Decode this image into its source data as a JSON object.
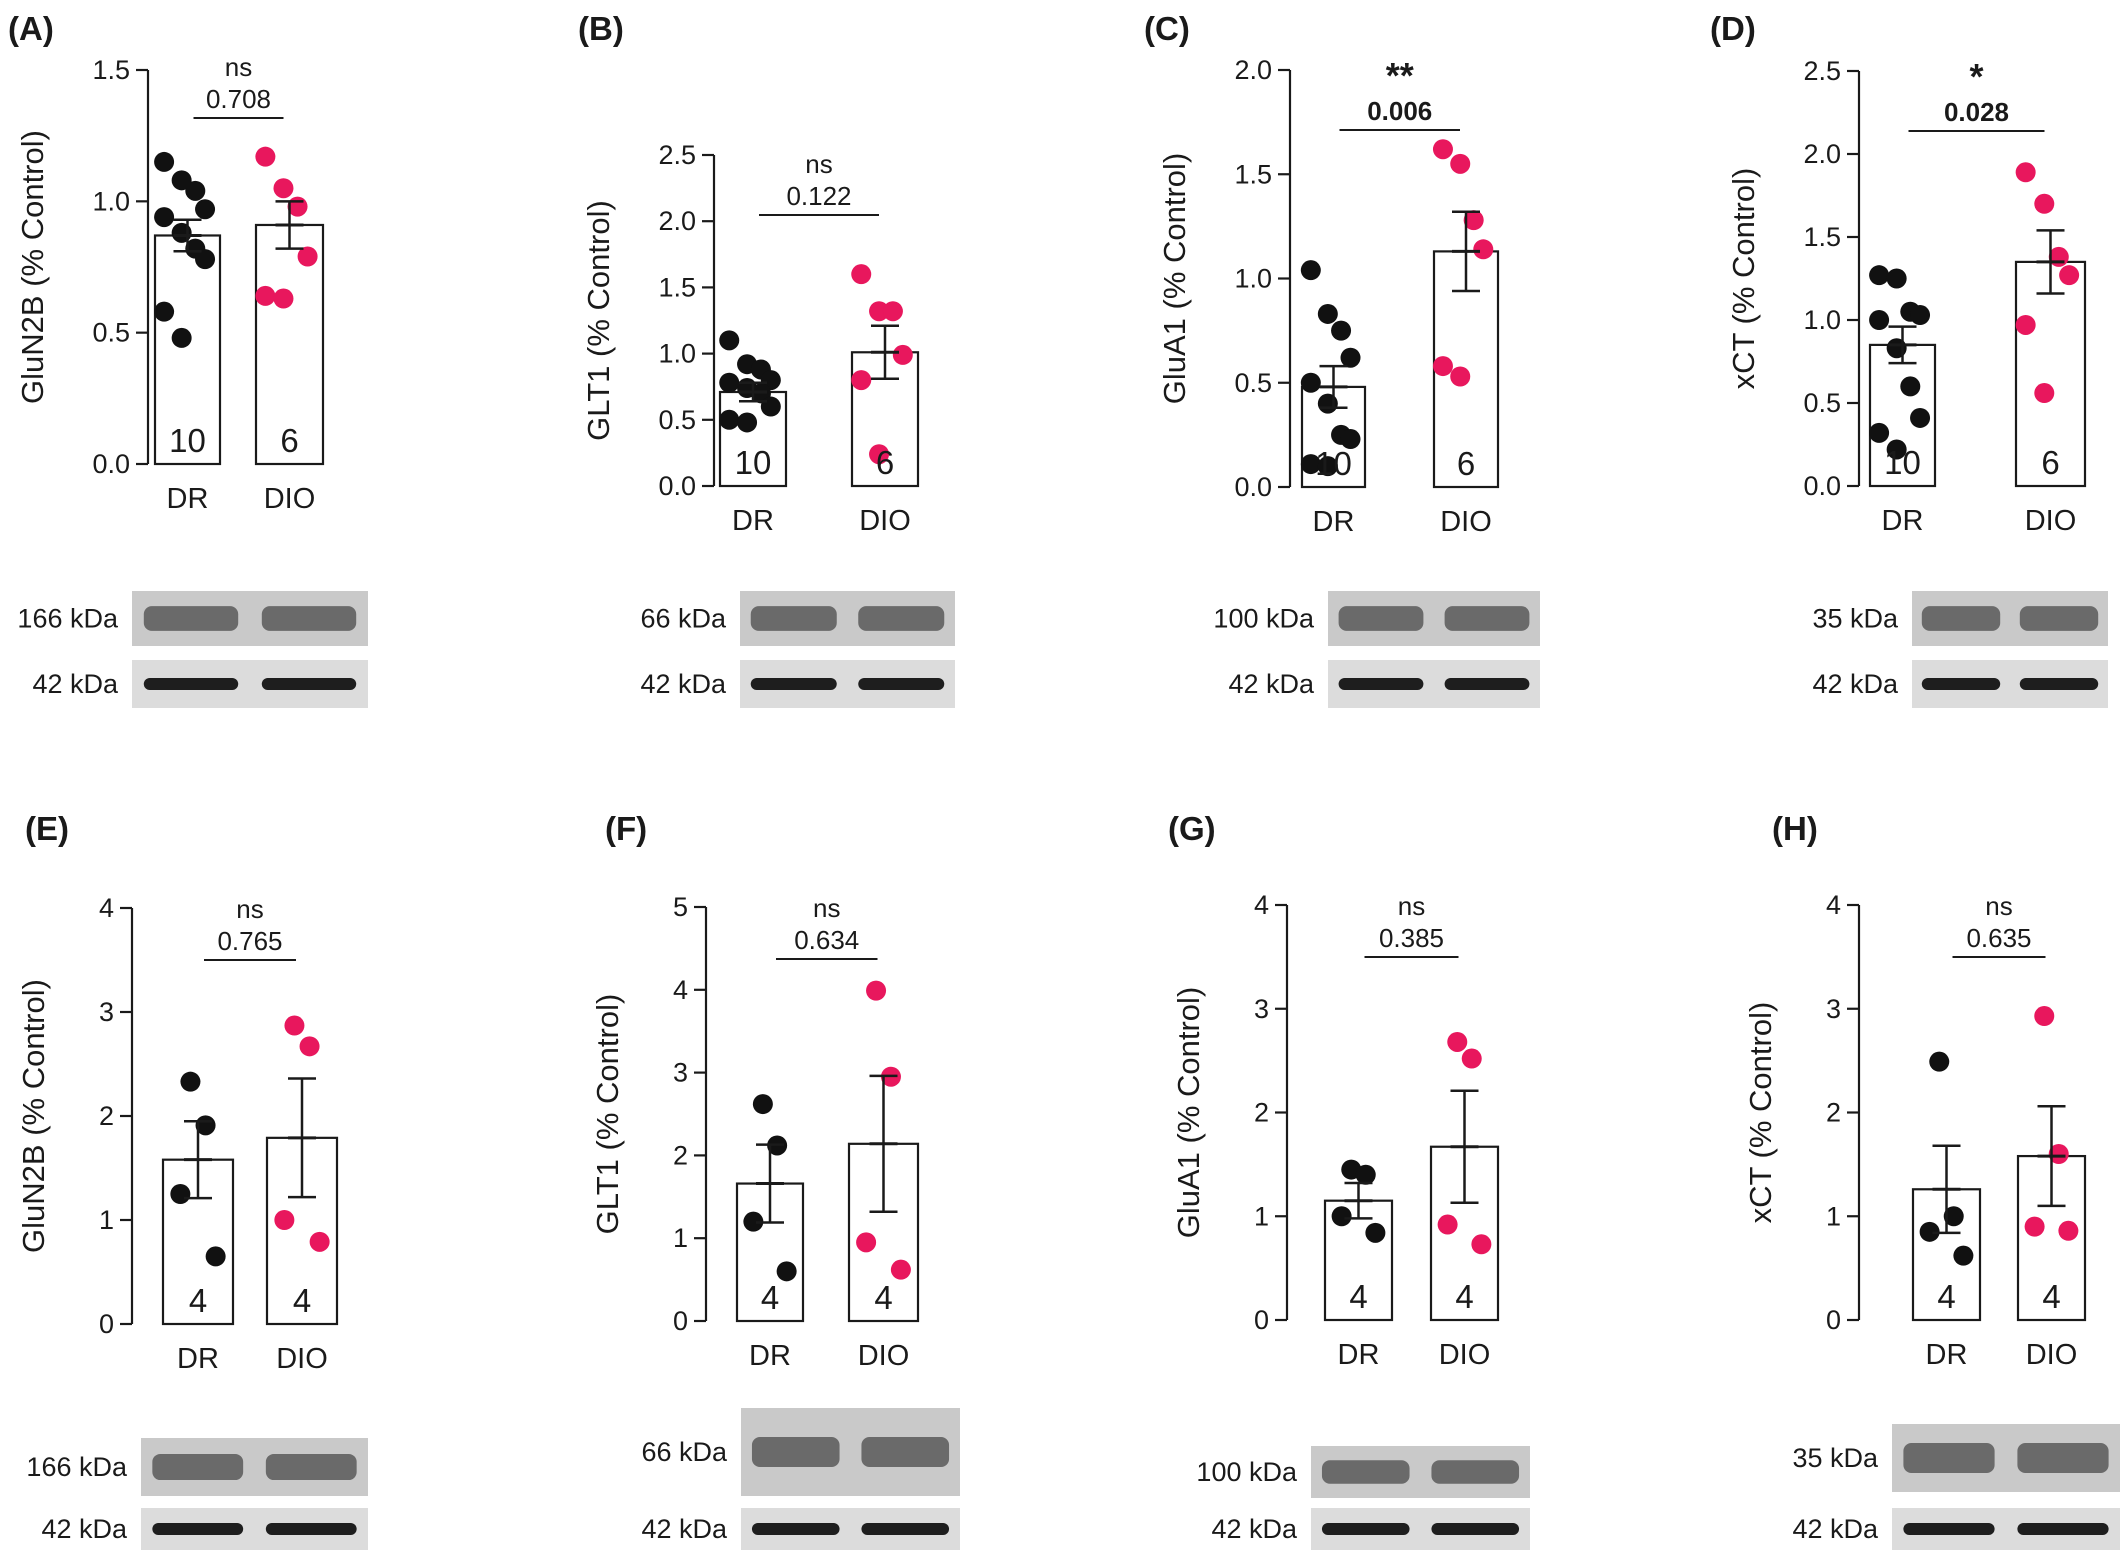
{
  "colors": {
    "dr_point": "#111111",
    "dio_point": "#e8175d",
    "axis": "#1a1a1a",
    "bar_fill": "#ffffff"
  },
  "panels": [
    {
      "letter": "(A)",
      "ylabel": "GluN2B (% Control)",
      "yticks": [
        "0.0",
        "0.5",
        "1.0",
        "1.5"
      ],
      "ymax": 1.5,
      "groups": [
        "DR",
        "DIO"
      ],
      "n": [
        "10",
        "6"
      ],
      "chart_data": {
        "type": "bar",
        "categories": [
          "DR",
          "DIO"
        ],
        "values": [
          0.87,
          0.91
        ],
        "sem": [
          0.06,
          0.09
        ],
        "points": [
          [
            1.15,
            1.08,
            1.04,
            0.97,
            0.94,
            0.88,
            0.82,
            0.78,
            0.58,
            0.48
          ],
          [
            1.17,
            1.05,
            0.98,
            0.79,
            0.64,
            0.63
          ]
        ]
      },
      "sig": "ns",
      "sig_bold": false,
      "p": "0.708",
      "blot": {
        "top_label": "166 kDa",
        "bottom_label": "42 kDa"
      }
    },
    {
      "letter": "(B)",
      "ylabel": "GLT1 (% Control)",
      "yticks": [
        "0.0",
        "0.5",
        "1.0",
        "1.5",
        "2.0",
        "2.5"
      ],
      "ymax": 2.5,
      "groups": [
        "DR",
        "DIO"
      ],
      "n": [
        "10",
        "6"
      ],
      "chart_data": {
        "type": "bar",
        "categories": [
          "DR",
          "DIO"
        ],
        "values": [
          0.71,
          1.01
        ],
        "sem": [
          0.07,
          0.2
        ],
        "points": [
          [
            1.1,
            0.92,
            0.88,
            0.8,
            0.78,
            0.74,
            0.7,
            0.6,
            0.5,
            0.48
          ],
          [
            1.6,
            1.32,
            1.32,
            0.99,
            0.8,
            0.24
          ]
        ]
      },
      "sig": "ns",
      "sig_bold": false,
      "p": "0.122",
      "blot": {
        "top_label": "66 kDa",
        "bottom_label": "42 kDa"
      }
    },
    {
      "letter": "(C)",
      "ylabel": "GluA1 (% Control)",
      "yticks": [
        "0.0",
        "0.5",
        "1.0",
        "1.5",
        "2.0"
      ],
      "ymax": 2.0,
      "groups": [
        "DR",
        "DIO"
      ],
      "n": [
        "10",
        "6"
      ],
      "chart_data": {
        "type": "bar",
        "categories": [
          "DR",
          "DIO"
        ],
        "values": [
          0.48,
          1.13
        ],
        "sem": [
          0.1,
          0.19
        ],
        "points": [
          [
            1.04,
            0.83,
            0.75,
            0.62,
            0.5,
            0.4,
            0.25,
            0.23,
            0.11,
            0.1
          ],
          [
            1.62,
            1.55,
            1.28,
            1.14,
            0.58,
            0.53
          ]
        ]
      },
      "sig": "**",
      "sig_bold": true,
      "p": "0.006",
      "blot": {
        "top_label": "100 kDa",
        "bottom_label": "42 kDa"
      }
    },
    {
      "letter": "(D)",
      "ylabel": "xCT (% Control)",
      "yticks": [
        "0.0",
        "0.5",
        "1.0",
        "1.5",
        "2.0",
        "2.5"
      ],
      "ymax": 2.5,
      "groups": [
        "DR",
        "DIO"
      ],
      "n": [
        "10",
        "6"
      ],
      "chart_data": {
        "type": "bar",
        "categories": [
          "DR",
          "DIO"
        ],
        "values": [
          0.85,
          1.35
        ],
        "sem": [
          0.11,
          0.19
        ],
        "points": [
          [
            1.27,
            1.25,
            1.05,
            1.03,
            1.0,
            0.83,
            0.6,
            0.41,
            0.32,
            0.22
          ],
          [
            1.89,
            1.7,
            1.38,
            1.27,
            0.97,
            0.56
          ]
        ]
      },
      "sig": "*",
      "sig_bold": true,
      "p": "0.028",
      "blot": {
        "top_label": "35 kDa",
        "bottom_label": "42 kDa"
      }
    },
    {
      "letter": "(E)",
      "ylabel": "GluN2B (% Control)",
      "yticks": [
        "0",
        "1",
        "2",
        "3",
        "4"
      ],
      "ymax": 4,
      "groups": [
        "DR",
        "DIO"
      ],
      "n": [
        "4",
        "4"
      ],
      "chart_data": {
        "type": "bar",
        "categories": [
          "DR",
          "DIO"
        ],
        "values": [
          1.58,
          1.79
        ],
        "sem": [
          0.37,
          0.57
        ],
        "points": [
          [
            2.33,
            1.91,
            1.25,
            0.65
          ],
          [
            2.87,
            2.67,
            1.0,
            0.79
          ]
        ]
      },
      "sig": "ns",
      "sig_bold": false,
      "p": "0.765",
      "blot": {
        "top_label": "166 kDa",
        "bottom_label": "42 kDa"
      }
    },
    {
      "letter": "(F)",
      "ylabel": "GLT1 (% Control)",
      "yticks": [
        "0",
        "1",
        "2",
        "3",
        "4",
        "5"
      ],
      "ymax": 5,
      "groups": [
        "DR",
        "DIO"
      ],
      "n": [
        "4",
        "4"
      ],
      "chart_data": {
        "type": "bar",
        "categories": [
          "DR",
          "DIO"
        ],
        "values": [
          1.66,
          2.14
        ],
        "sem": [
          0.47,
          0.82
        ],
        "points": [
          [
            2.62,
            2.12,
            1.2,
            0.6
          ],
          [
            3.99,
            2.95,
            0.95,
            0.62
          ]
        ]
      },
      "sig": "ns",
      "sig_bold": false,
      "p": "0.634",
      "blot": {
        "top_label": "66 kDa",
        "bottom_label": "42 kDa"
      }
    },
    {
      "letter": "(G)",
      "ylabel": "GluA1 (% Control)",
      "yticks": [
        "0",
        "1",
        "2",
        "3",
        "4"
      ],
      "ymax": 4,
      "groups": [
        "DR",
        "DIO"
      ],
      "n": [
        "4",
        "4"
      ],
      "chart_data": {
        "type": "bar",
        "categories": [
          "DR",
          "DIO"
        ],
        "values": [
          1.15,
          1.67
        ],
        "sem": [
          0.17,
          0.54
        ],
        "points": [
          [
            1.45,
            1.4,
            1.0,
            0.84
          ],
          [
            2.68,
            2.52,
            0.92,
            0.73
          ]
        ]
      },
      "sig": "ns",
      "sig_bold": false,
      "p": "0.385",
      "blot": {
        "top_label": "100 kDa",
        "bottom_label": "42 kDa"
      }
    },
    {
      "letter": "(H)",
      "ylabel": "xCT (% Control)",
      "yticks": [
        "0",
        "1",
        "2",
        "3",
        "4"
      ],
      "ymax": 4,
      "groups": [
        "DR",
        "DIO"
      ],
      "n": [
        "4",
        "4"
      ],
      "chart_data": {
        "type": "bar",
        "categories": [
          "DR",
          "DIO"
        ],
        "values": [
          1.26,
          1.58
        ],
        "sem": [
          0.42,
          0.48
        ],
        "points": [
          [
            2.49,
            1.0,
            0.85,
            0.62
          ],
          [
            2.93,
            1.6,
            0.9,
            0.86
          ]
        ]
      },
      "sig": "ns",
      "sig_bold": false,
      "p": "0.635",
      "blot": {
        "top_label": "35 kDa",
        "bottom_label": "42 kDa"
      }
    }
  ]
}
